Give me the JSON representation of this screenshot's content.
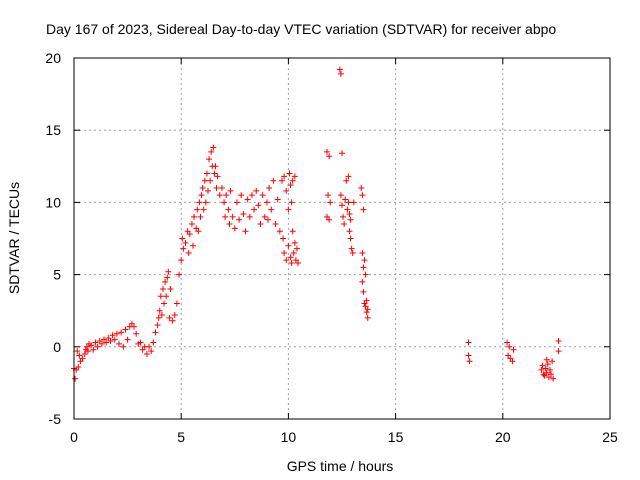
{
  "chart_data": {
    "type": "scatter",
    "title": "Day 167 of 2023, Sidereal Day-to-day VTEC variation (SDTVAR) for receiver abpo",
    "xlabel": "GPS time / hours",
    "ylabel": "SDTVAR / TECUs",
    "xlim": [
      0,
      25
    ],
    "ylim": [
      -5,
      20
    ],
    "xticks": [
      0,
      5,
      10,
      15,
      20,
      25
    ],
    "yticks": [
      -5,
      0,
      5,
      10,
      15,
      20
    ],
    "grid": true,
    "marker": "+",
    "color": "#ff0000",
    "series": [
      {
        "name": "SDTVAR",
        "points": [
          [
            0.0,
            -1.5
          ],
          [
            0.05,
            -2.2
          ],
          [
            0.1,
            -1.6
          ],
          [
            0.15,
            -0.3
          ],
          [
            0.2,
            -1.4
          ],
          [
            0.25,
            -0.6
          ],
          [
            0.3,
            -1.0
          ],
          [
            0.4,
            -0.8
          ],
          [
            0.5,
            -0.5
          ],
          [
            0.55,
            -0.2
          ],
          [
            0.6,
            0.0
          ],
          [
            0.65,
            -0.3
          ],
          [
            0.7,
            0.2
          ],
          [
            0.8,
            0.1
          ],
          [
            0.9,
            -0.2
          ],
          [
            1.0,
            0.3
          ],
          [
            1.1,
            0.0
          ],
          [
            1.2,
            0.4
          ],
          [
            1.3,
            0.2
          ],
          [
            1.4,
            0.5
          ],
          [
            1.5,
            0.3
          ],
          [
            1.6,
            0.6
          ],
          [
            1.7,
            0.4
          ],
          [
            1.8,
            0.8
          ],
          [
            1.9,
            0.5
          ],
          [
            2.0,
            0.9
          ],
          [
            2.1,
            0.2
          ],
          [
            2.2,
            1.0
          ],
          [
            2.3,
            0.0
          ],
          [
            2.4,
            1.2
          ],
          [
            2.5,
            0.5
          ],
          [
            2.6,
            1.4
          ],
          [
            2.7,
            1.6
          ],
          [
            2.8,
            1.4
          ],
          [
            2.9,
            0.9
          ],
          [
            3.0,
            0.2
          ],
          [
            3.1,
            0.3
          ],
          [
            3.2,
            -0.2
          ],
          [
            3.3,
            0.0
          ],
          [
            3.4,
            -0.5
          ],
          [
            3.5,
            0.0
          ],
          [
            3.6,
            -0.3
          ],
          [
            3.7,
            0.3
          ],
          [
            3.8,
            1.0
          ],
          [
            3.9,
            1.5
          ],
          [
            3.95,
            2.0
          ],
          [
            4.0,
            2.5
          ],
          [
            4.05,
            3.5
          ],
          [
            4.1,
            2.2
          ],
          [
            4.15,
            4.0
          ],
          [
            4.2,
            3.0
          ],
          [
            4.25,
            4.5
          ],
          [
            4.3,
            3.5
          ],
          [
            4.35,
            4.8
          ],
          [
            4.4,
            5.2
          ],
          [
            4.45,
            2.0
          ],
          [
            4.5,
            4.0
          ],
          [
            4.6,
            1.8
          ],
          [
            4.7,
            2.2
          ],
          [
            4.8,
            3.0
          ],
          [
            4.9,
            5.0
          ],
          [
            5.0,
            6.0
          ],
          [
            5.05,
            7.5
          ],
          [
            5.1,
            6.8
          ],
          [
            5.2,
            7.2
          ],
          [
            5.3,
            8.0
          ],
          [
            5.35,
            6.5
          ],
          [
            5.4,
            7.8
          ],
          [
            5.5,
            8.5
          ],
          [
            5.55,
            7.0
          ],
          [
            5.6,
            9.0
          ],
          [
            5.7,
            8.2
          ],
          [
            5.75,
            9.5
          ],
          [
            5.8,
            8.0
          ],
          [
            5.85,
            10.0
          ],
          [
            5.9,
            9.0
          ],
          [
            5.95,
            10.5
          ],
          [
            6.0,
            11.0
          ],
          [
            6.05,
            9.5
          ],
          [
            6.1,
            11.5
          ],
          [
            6.15,
            10.0
          ],
          [
            6.2,
            12.0
          ],
          [
            6.25,
            10.8
          ],
          [
            6.3,
            13.0
          ],
          [
            6.35,
            11.5
          ],
          [
            6.4,
            13.5
          ],
          [
            6.45,
            12.5
          ],
          [
            6.5,
            13.8
          ],
          [
            6.55,
            12.0
          ],
          [
            6.6,
            12.5
          ],
          [
            6.65,
            11.0
          ],
          [
            6.7,
            11.8
          ],
          [
            6.8,
            10.5
          ],
          [
            6.9,
            11.0
          ],
          [
            7.0,
            10.0
          ],
          [
            7.05,
            9.0
          ],
          [
            7.1,
            10.5
          ],
          [
            7.2,
            9.5
          ],
          [
            7.25,
            8.5
          ],
          [
            7.3,
            10.8
          ],
          [
            7.4,
            9.0
          ],
          [
            7.5,
            8.2
          ],
          [
            7.6,
            10.0
          ],
          [
            7.7,
            8.8
          ],
          [
            7.8,
            10.5
          ],
          [
            7.9,
            9.2
          ],
          [
            8.0,
            8.0
          ],
          [
            8.1,
            10.2
          ],
          [
            8.2,
            9.0
          ],
          [
            8.3,
            10.5
          ],
          [
            8.4,
            9.5
          ],
          [
            8.5,
            10.8
          ],
          [
            8.6,
            9.8
          ],
          [
            8.7,
            8.5
          ],
          [
            8.8,
            10.5
          ],
          [
            8.9,
            9.0
          ],
          [
            9.0,
            10.0
          ],
          [
            9.05,
            8.8
          ],
          [
            9.1,
            11.0
          ],
          [
            9.2,
            9.5
          ],
          [
            9.3,
            11.5
          ],
          [
            9.4,
            8.5
          ],
          [
            9.5,
            10.2
          ],
          [
            9.6,
            8.0
          ],
          [
            9.7,
            11.5
          ],
          [
            9.8,
            11.8
          ],
          [
            9.9,
            10.8
          ],
          [
            10.0,
            9.5
          ],
          [
            10.05,
            12.0
          ],
          [
            10.1,
            11.2
          ],
          [
            10.15,
            10.0
          ],
          [
            10.2,
            11.5
          ],
          [
            10.3,
            11.8
          ],
          [
            9.75,
            7.5
          ],
          [
            9.8,
            6.5
          ],
          [
            9.9,
            6.0
          ],
          [
            10.0,
            7.0
          ],
          [
            10.1,
            6.2
          ],
          [
            10.15,
            5.8
          ],
          [
            10.2,
            8.0
          ],
          [
            10.25,
            6.5
          ],
          [
            10.3,
            7.2
          ],
          [
            10.35,
            6.0
          ],
          [
            10.4,
            6.8
          ],
          [
            10.45,
            5.8
          ],
          [
            11.8,
            13.5
          ],
          [
            11.8,
            9.0
          ],
          [
            11.85,
            10.5
          ],
          [
            11.9,
            13.2
          ],
          [
            11.9,
            8.8
          ],
          [
            11.95,
            10.0
          ],
          [
            12.4,
            19.2
          ],
          [
            12.45,
            18.9
          ],
          [
            12.5,
            13.4
          ],
          [
            12.45,
            10.5
          ],
          [
            12.5,
            9.8
          ],
          [
            12.55,
            9.0
          ],
          [
            12.6,
            8.5
          ],
          [
            12.65,
            10.2
          ],
          [
            12.7,
            11.5
          ],
          [
            12.75,
            9.5
          ],
          [
            12.8,
            11.8
          ],
          [
            12.85,
            8.0
          ],
          [
            12.9,
            7.5
          ],
          [
            12.95,
            6.8
          ],
          [
            13.0,
            6.5
          ],
          [
            13.05,
            10.0
          ],
          [
            12.8,
            10.0
          ],
          [
            12.85,
            9.2
          ],
          [
            12.9,
            8.8
          ],
          [
            13.4,
            11.0
          ],
          [
            13.45,
            10.5
          ],
          [
            13.5,
            9.5
          ],
          [
            13.45,
            6.5
          ],
          [
            13.5,
            5.5
          ],
          [
            13.55,
            6.0
          ],
          [
            13.6,
            5.0
          ],
          [
            13.45,
            4.5
          ],
          [
            13.5,
            3.8
          ],
          [
            13.55,
            3.0
          ],
          [
            13.6,
            2.8
          ],
          [
            13.65,
            2.4
          ],
          [
            13.7,
            2.0
          ],
          [
            13.65,
            3.2
          ],
          [
            13.7,
            2.6
          ],
          [
            18.4,
            0.3
          ],
          [
            18.4,
            -0.6
          ],
          [
            18.45,
            -1.0
          ],
          [
            20.2,
            0.3
          ],
          [
            20.3,
            0.0
          ],
          [
            20.25,
            -0.6
          ],
          [
            20.35,
            -0.8
          ],
          [
            20.45,
            -1.0
          ],
          [
            20.5,
            -0.2
          ],
          [
            21.8,
            -1.6
          ],
          [
            21.85,
            -1.3
          ],
          [
            21.9,
            -1.9
          ],
          [
            21.95,
            -2.0
          ],
          [
            22.0,
            -1.5
          ],
          [
            22.05,
            -1.8
          ],
          [
            22.1,
            -1.2
          ],
          [
            22.15,
            -2.1
          ],
          [
            22.2,
            -1.6
          ],
          [
            22.25,
            -1.9
          ],
          [
            22.3,
            -1.0
          ],
          [
            22.35,
            -2.2
          ],
          [
            22.05,
            -0.9
          ],
          [
            22.6,
            0.4
          ],
          [
            22.6,
            -0.3
          ]
        ]
      }
    ]
  }
}
